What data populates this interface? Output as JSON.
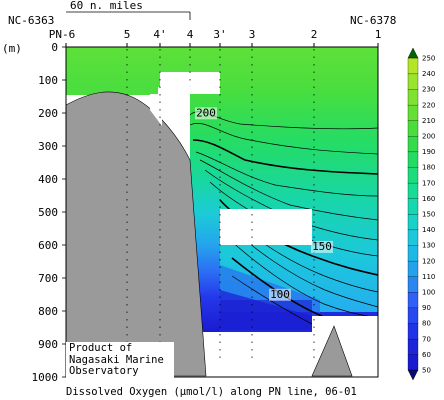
{
  "chart_data": {
    "type": "heatmap",
    "title": "Dissolved Oxygen (μmol/l) along PN line, 06-01",
    "ylabel": "(m)",
    "ylim": [
      0,
      1000
    ],
    "yticks": [
      0,
      100,
      200,
      300,
      400,
      500,
      600,
      700,
      800,
      900,
      1000
    ],
    "stations": [
      "PN-6",
      "5",
      "4'",
      "4",
      "3'",
      "3",
      "2",
      "1"
    ],
    "section_ends": {
      "left": "NC-6363",
      "right": "NC-6378"
    },
    "scale_label": "60 n. miles",
    "contour_labels": [
      {
        "text": "200",
        "depth": 210
      },
      {
        "text": "150",
        "depth": 615
      },
      {
        "text": "100",
        "depth": 760
      }
    ],
    "colorbar": {
      "min": 50,
      "max": 250,
      "step": 10,
      "ticks": [
        50,
        60,
        70,
        80,
        90,
        100,
        110,
        120,
        130,
        140,
        150,
        160,
        170,
        180,
        190,
        200,
        210,
        220,
        230,
        240,
        250
      ],
      "colors": [
        "#1a1ad0",
        "#1e24dc",
        "#2232e8",
        "#2a48f0",
        "#3060f6",
        "#2a86f0",
        "#24a2ec",
        "#1eb8e6",
        "#1ec8dc",
        "#18d2c8",
        "#16d8b0",
        "#18dc96",
        "#1cdc7c",
        "#24dc64",
        "#34dc4c",
        "#4ade3c",
        "#64e034",
        "#80e230",
        "#9ae42c",
        "#b4e628"
      ]
    },
    "note": [
      "Product of",
      "Nagasaki Marine",
      "Observatory"
    ]
  }
}
